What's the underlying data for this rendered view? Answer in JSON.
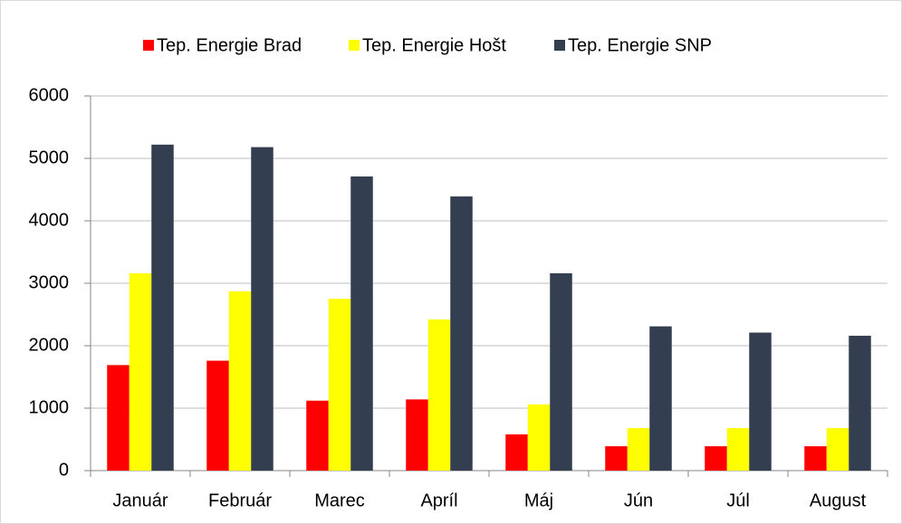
{
  "chart_data": {
    "type": "bar",
    "categories": [
      "Január",
      "Február",
      "Marec",
      "Apríl",
      "Máj",
      "Jún",
      "Júl",
      "August"
    ],
    "series": [
      {
        "name": "Tep. Energie Brad",
        "color": "#ff0000",
        "values": [
          1690,
          1760,
          1120,
          1140,
          580,
          390,
          390,
          390
        ]
      },
      {
        "name": "Tep. Energie Hošt",
        "color": "#ffff00",
        "values": [
          3160,
          2870,
          2750,
          2420,
          1060,
          680,
          680,
          680
        ]
      },
      {
        "name": "Tep. Energie SNP",
        "color": "#333f50",
        "values": [
          5220,
          5180,
          4710,
          4390,
          3160,
          2310,
          2210,
          2160
        ]
      }
    ],
    "ylim": [
      0,
      6000
    ],
    "yticks": [
      0,
      1000,
      2000,
      3000,
      4000,
      5000,
      6000
    ],
    "grid": true,
    "legend": "top"
  }
}
